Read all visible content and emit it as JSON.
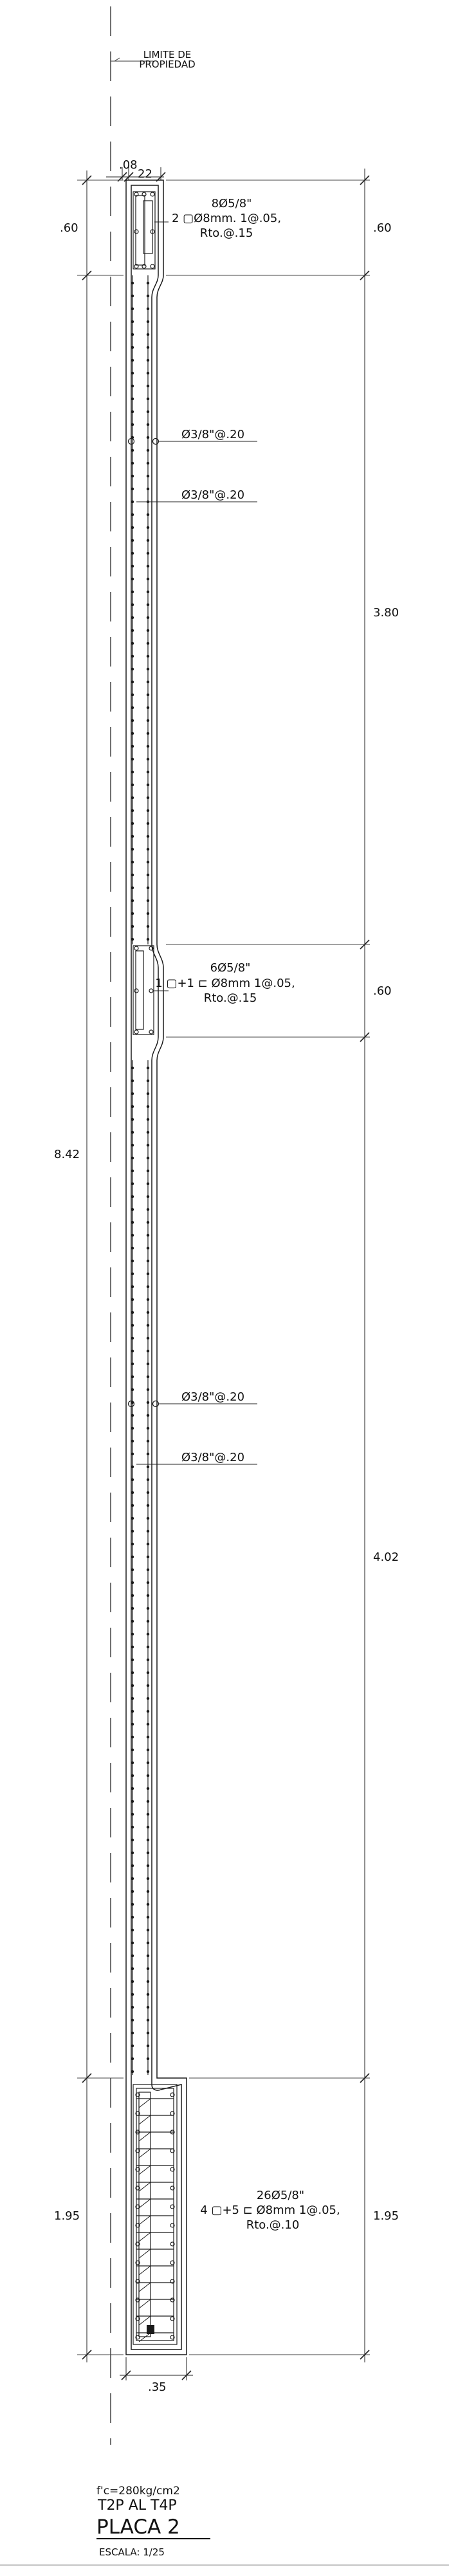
{
  "property_limit": {
    "line1": "LIMITE  DE",
    "line2": "PROPIEDAD"
  },
  "top_dims": {
    "d1": ".08",
    "d2": "22"
  },
  "left_dims": {
    "top": ".60",
    "total": "8.42",
    "bottom": "1.95"
  },
  "right_dims": {
    "a": ".60",
    "b": "3.80",
    "c": ".60",
    "d": "4.02",
    "e": "1.95"
  },
  "bottom_dim": ".35",
  "annotations": {
    "top_end": {
      "l1": "8Ø5/8\"",
      "l2": "2 ▢Ø8mm. 1@.05,",
      "l3": "Rto.@.15"
    },
    "mid_end": {
      "l1": "6Ø5/8\"",
      "l2": "1 ▢+1 ⊏ Ø8mm  1@.05,",
      "l3": "Rto.@.15"
    },
    "bottom_end": {
      "l1": "26Ø5/8\"",
      "l2": "4 ▢+5 ⊏ Ø8mm  1@.05,",
      "l3": "Rto.@.10"
    },
    "web_1": "Ø3/8\"@.20",
    "web_2": "Ø3/8\"@.20",
    "web_3": "Ø3/8\"@.20",
    "web_4": "Ø3/8\"@.20"
  },
  "notes": {
    "fc": "f'c=280kg/cm2",
    "level": "T2P AL T4P"
  },
  "title": "PLACA 2",
  "scale": "ESCALA:  1/25",
  "colors": {
    "line": "#1a1a1a",
    "dim": "#333333"
  }
}
